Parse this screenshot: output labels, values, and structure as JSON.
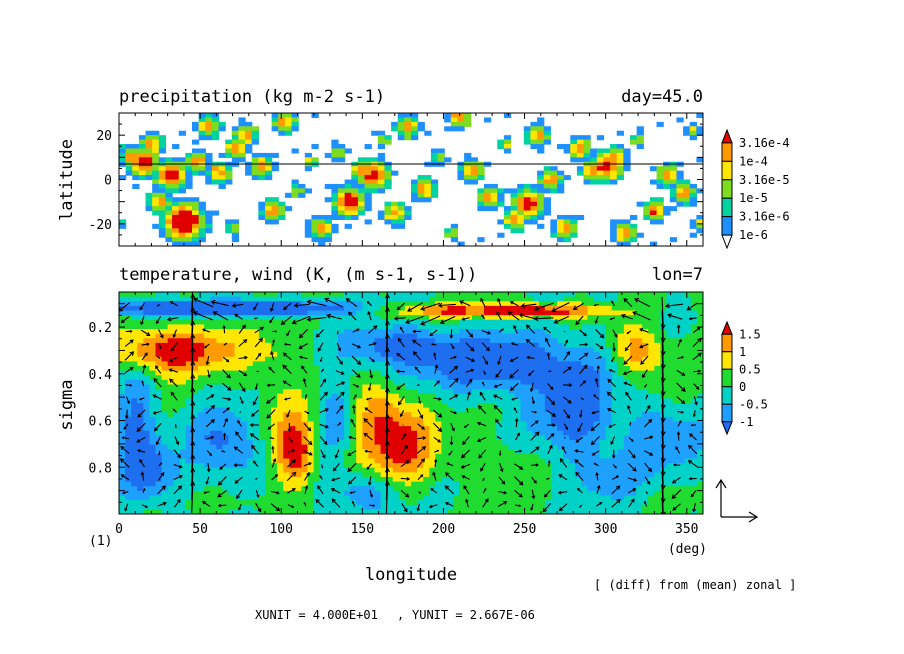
{
  "chart_data": [
    {
      "type": "heatmap",
      "title": "precipitation (kg m-2 s-1)",
      "right_title": "day=45.0",
      "ylabel": "latitude",
      "xlim": [
        0,
        360
      ],
      "ylim": [
        -30,
        30
      ],
      "y_ticks": [
        {
          "v": 20,
          "label": "20"
        },
        {
          "v": 0,
          "label": "0"
        },
        {
          "v": -20,
          "label": "-20"
        }
      ],
      "reference_line_latitude": 7,
      "colorbar": {
        "levels": [
          "1e-6",
          "3.16e-6",
          "1e-5",
          "3.16e-5",
          "1e-4",
          "3.16e-4"
        ],
        "colors": [
          "#ffffff",
          "#1e90ff",
          "#00d2a0",
          "#7ddc1e",
          "#ffe600",
          "#ff9a00",
          "#e00000"
        ]
      },
      "cells": [
        [
          8,
          10,
          3
        ],
        [
          15,
          8,
          4
        ],
        [
          20,
          16,
          3
        ],
        [
          25,
          -10,
          3
        ],
        [
          32,
          2,
          4
        ],
        [
          40,
          -19,
          5
        ],
        [
          48,
          8,
          3
        ],
        [
          55,
          24,
          3
        ],
        [
          62,
          3,
          3
        ],
        [
          72,
          14,
          3
        ],
        [
          70,
          -22,
          2
        ],
        [
          78,
          20,
          3
        ],
        [
          88,
          6,
          3
        ],
        [
          95,
          -14,
          3
        ],
        [
          102,
          26,
          3
        ],
        [
          110,
          -5,
          2
        ],
        [
          118,
          8,
          2
        ],
        [
          125,
          -22,
          3
        ],
        [
          135,
          12,
          2
        ],
        [
          142,
          -10,
          4
        ],
        [
          150,
          4,
          3
        ],
        [
          157,
          2,
          4
        ],
        [
          163,
          18,
          2
        ],
        [
          170,
          -15,
          3
        ],
        [
          178,
          24,
          3
        ],
        [
          188,
          -4,
          3
        ],
        [
          197,
          10,
          2
        ],
        [
          205,
          -24,
          2
        ],
        [
          210,
          28,
          3
        ],
        [
          218,
          4,
          3
        ],
        [
          228,
          -8,
          3
        ],
        [
          238,
          16,
          2
        ],
        [
          244,
          -18,
          3
        ],
        [
          252,
          -11,
          4
        ],
        [
          258,
          20,
          3
        ],
        [
          266,
          0,
          3
        ],
        [
          275,
          -22,
          3
        ],
        [
          284,
          14,
          3
        ],
        [
          292,
          4,
          3
        ],
        [
          301,
          6,
          4
        ],
        [
          306,
          10,
          3
        ],
        [
          312,
          -24,
          3
        ],
        [
          320,
          18,
          2
        ],
        [
          330,
          -14,
          3
        ],
        [
          338,
          2,
          3
        ],
        [
          348,
          -6,
          3
        ],
        [
          354,
          22,
          2
        ],
        [
          358,
          -20,
          2
        ]
      ]
    },
    {
      "type": "heatmap",
      "title": "temperature, wind (K, (m s-1, s-1))",
      "right_title": "lon=7",
      "xlabel": "longitude",
      "xunit": "(deg)",
      "ylabel": "sigma",
      "xlim": [
        0,
        360
      ],
      "ylim": [
        1.0,
        0.05
      ],
      "x_ticks": [
        {
          "v": 0,
          "label": "0"
        },
        {
          "v": 50,
          "label": "50"
        },
        {
          "v": 100,
          "label": "100"
        },
        {
          "v": 150,
          "label": "150"
        },
        {
          "v": 200,
          "label": "200"
        },
        {
          "v": 250,
          "label": "250"
        },
        {
          "v": 300,
          "label": "300"
        },
        {
          "v": 350,
          "label": "350"
        }
      ],
      "y_ticks": [
        {
          "v": 0.2,
          "label": "0.2"
        },
        {
          "v": 0.4,
          "label": "0.4"
        },
        {
          "v": 0.6,
          "label": "0.6"
        },
        {
          "v": 0.8,
          "label": "0.8"
        }
      ],
      "colorbar": {
        "levels": [
          "-1",
          "-0.5",
          "0",
          "0.5",
          "1",
          "1.5"
        ],
        "colors": [
          "#1e6ef0",
          "#1ea0ff",
          "#00d2c8",
          "#20dc30",
          "#ffe600",
          "#ff9a00",
          "#e00000"
        ]
      },
      "blobs": [
        [
          40,
          0.3,
          40,
          0.1,
          1.6
        ],
        [
          20,
          0.3,
          20,
          0.1,
          0.6
        ],
        [
          100,
          0.35,
          12,
          0.12,
          0.5
        ],
        [
          110,
          0.75,
          12,
          0.15,
          1.7
        ],
        [
          100,
          0.6,
          15,
          0.18,
          0.6
        ],
        [
          170,
          0.7,
          25,
          0.18,
          1.8
        ],
        [
          160,
          0.55,
          15,
          0.12,
          0.7
        ],
        [
          235,
          0.8,
          20,
          0.1,
          0.6
        ],
        [
          320,
          0.3,
          15,
          0.1,
          1.3
        ],
        [
          335,
          0.45,
          20,
          0.15,
          0.5
        ],
        [
          260,
          0.13,
          40,
          0.03,
          1.9
        ],
        [
          200,
          0.13,
          40,
          0.03,
          1.3
        ],
        [
          30,
          0.12,
          60,
          0.03,
          -1.8
        ],
        [
          100,
          0.12,
          50,
          0.03,
          -1.6
        ],
        [
          230,
          0.35,
          50,
          0.12,
          -1.6
        ],
        [
          170,
          0.28,
          30,
          0.08,
          -1.3
        ],
        [
          280,
          0.55,
          25,
          0.2,
          -1.4
        ],
        [
          10,
          0.6,
          12,
          0.25,
          -1.2
        ],
        [
          20,
          0.82,
          15,
          0.12,
          -1.3
        ],
        [
          65,
          0.7,
          20,
          0.15,
          -1.2
        ],
        [
          135,
          0.6,
          12,
          0.15,
          -1.0
        ],
        [
          150,
          0.9,
          25,
          0.1,
          -1.0
        ],
        [
          335,
          0.65,
          25,
          0.2,
          -0.9
        ],
        [
          300,
          0.85,
          20,
          0.12,
          -0.6
        ],
        [
          75,
          0.95,
          30,
          0.05,
          0.3
        ],
        [
          350,
          0.92,
          20,
          0.08,
          0.2
        ]
      ],
      "vector_reference": {
        "xunit": "XUNIT = 4.000E+01",
        "yunit": "YUNIT = 2.667E-06"
      },
      "note": "[ (diff) from (mean) zonal ]",
      "figure_label": "(1)"
    }
  ]
}
